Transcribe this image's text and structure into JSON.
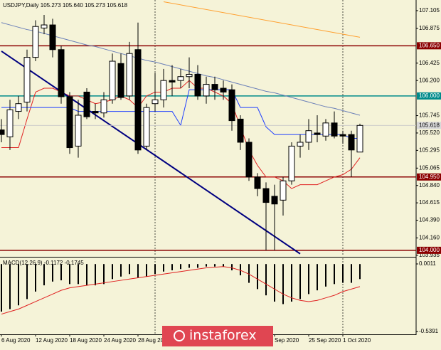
{
  "header": "USDJPY,Daily  105.273 105.640 105.273 105.618",
  "watermark": "instaforex",
  "chart_data": [
    {
      "type": "candlestick",
      "categories": [
        "6 Aug 2020",
        null,
        null,
        null,
        "12 Aug 2020",
        null,
        null,
        null,
        "18 Aug 2020",
        null,
        null,
        null,
        "24 Aug 2020",
        null,
        null,
        null,
        "28 Aug 2020",
        null,
        null,
        null,
        null,
        null,
        null,
        null,
        null,
        null,
        null,
        null,
        null,
        null,
        null,
        null,
        "Sep 2020",
        null,
        null,
        null,
        "25 Sep 2020",
        null,
        null,
        null,
        "1 Oct 2020",
        null,
        null
      ],
      "open": [
        105.56,
        105.47,
        105.8,
        105.92,
        106.5,
        106.88,
        106.92,
        106.6,
        105.99,
        105.35,
        106.05,
        105.8,
        105.78,
        105.95,
        106.42,
        106.0,
        106.6,
        105.35,
        105.9,
        105.95,
        106.2,
        106.2,
        106.25,
        106.28,
        106.0,
        106.15,
        106.1,
        106.08,
        105.7,
        105.4,
        104.95,
        104.8,
        104.7,
        104.65,
        104.9,
        105.35,
        105.4,
        105.52,
        105.48,
        105.65,
        105.5,
        105.5,
        105.273
      ],
      "high": [
        105.7,
        105.95,
        106.0,
        106.6,
        106.98,
        107.05,
        107.0,
        106.65,
        106.05,
        105.95,
        106.1,
        105.9,
        106.05,
        106.55,
        106.55,
        106.7,
        106.95,
        105.9,
        106.3,
        106.35,
        106.4,
        106.35,
        106.5,
        106.4,
        106.25,
        106.25,
        106.2,
        106.15,
        105.75,
        105.45,
        105.0,
        104.88,
        104.85,
        104.95,
        105.4,
        105.5,
        105.7,
        105.75,
        105.7,
        105.8,
        105.55,
        105.55,
        105.64
      ],
      "low": [
        105.4,
        105.3,
        105.7,
        105.8,
        106.45,
        106.8,
        106.5,
        105.9,
        105.25,
        105.2,
        105.7,
        105.7,
        105.72,
        105.9,
        105.95,
        105.95,
        105.25,
        105.3,
        105.8,
        105.85,
        106.0,
        106.1,
        106.1,
        105.95,
        105.9,
        105.95,
        105.95,
        105.55,
        105.3,
        104.9,
        104.7,
        104.0,
        104.0,
        104.45,
        104.85,
        105.2,
        105.3,
        105.4,
        105.42,
        105.45,
        105.38,
        104.95,
        105.273
      ],
      "close": [
        105.5,
        105.82,
        105.9,
        106.5,
        106.9,
        106.92,
        106.6,
        105.99,
        105.33,
        105.75,
        105.73,
        105.78,
        105.95,
        106.45,
        105.98,
        106.55,
        105.3,
        105.85,
        105.95,
        106.2,
        106.18,
        106.25,
        106.28,
        106.0,
        106.15,
        106.08,
        106.05,
        105.68,
        105.4,
        104.95,
        104.8,
        104.62,
        104.6,
        104.9,
        105.35,
        105.4,
        105.55,
        105.5,
        105.65,
        105.48,
        105.48,
        105.3,
        105.618
      ],
      "up_color": "#ffffff",
      "down_color": "#000000",
      "ylim": [
        103.925,
        107.243
      ],
      "yticks": [
        107.105,
        106.875,
        106.425,
        {
          "value": 106.2,
          "label": "106.200"
        },
        105.745,
        {
          "value": 105.52,
          "label": "105.520"
        },
        105.295,
        105.065,
        {
          "value": 104.84,
          "label": "104.840"
        },
        104.615,
        {
          "value": 104.39,
          "label": "104.390"
        },
        {
          "value": 104.16,
          "label": "104.160"
        },
        103.935
      ],
      "levels": [
        {
          "value": 106.65,
          "label": "106.650",
          "color": "#8b0000"
        },
        {
          "value": 106,
          "label": "106.000",
          "color": "#008b8b"
        },
        {
          "value": 104.95,
          "label": "104.950",
          "color": "#8b0000"
        },
        {
          "value": 104,
          "label": "104.000",
          "color": "#8b0000"
        }
      ],
      "current_price": 105.618,
      "lines": [
        {
          "color": "#e02020",
          "values": [
            105.33,
            105.33,
            105.33,
            105.7,
            106.05,
            106.1,
            106.1,
            106.05,
            106.0,
            106.0,
            105.95,
            105.9,
            105.92,
            105.95,
            106.0,
            105.95,
            105.85,
            106.0,
            106.05,
            106.05,
            106.1,
            106.1,
            106.2,
            106.1,
            106.1,
            106.05,
            106.0,
            105.9,
            105.6,
            105.3,
            105.1,
            104.95,
            104.95,
            104.9,
            104.8,
            104.85,
            104.85,
            104.85,
            104.9,
            104.95,
            104.98,
            105.05,
            105.2
          ]
        },
        {
          "color": "#1f3fff",
          "values": [
            105.85,
            105.85,
            105.85,
            105.85,
            105.85,
            105.85,
            105.85,
            105.85,
            105.85,
            105.8,
            105.8,
            105.8,
            105.8,
            105.8,
            105.8,
            105.8,
            105.8,
            105.8,
            105.8,
            105.8,
            105.8,
            105.62,
            106.08,
            106.08,
            106.08,
            106.08,
            106.08,
            106.08,
            105.85,
            105.85,
            105.85,
            105.6,
            105.5,
            105.5,
            105.5,
            105.5,
            105.5,
            105.5,
            105.5,
            105.5,
            105.5,
            105.45,
            105.45
          ]
        },
        {
          "color": "#6a7fb8",
          "values": [
            106.95,
            106.92,
            106.89,
            106.86,
            106.84,
            106.81,
            106.78,
            106.75,
            106.72,
            106.69,
            106.66,
            106.64,
            106.61,
            106.58,
            106.55,
            106.52,
            106.49,
            106.46,
            106.44,
            106.41,
            106.38,
            106.35,
            106.32,
            106.29,
            106.26,
            106.24,
            106.21,
            106.18,
            106.15,
            106.12,
            106.09,
            106.06,
            106.04,
            106.01,
            105.98,
            105.95,
            105.92,
            105.89,
            105.86,
            105.84,
            105.81,
            105.78,
            105.75
          ]
        },
        {
          "color": "#ffa030",
          "x": [
            19,
            42
          ],
          "values": [
            107.22,
            106.76
          ]
        },
        {
          "color": "#000080",
          "x": [
            0,
            35
          ],
          "values": [
            106.58,
            103.955
          ]
        }
      ]
    },
    {
      "type": "macd",
      "label": "MACD(12,26,9) -0.1172 -0.1745",
      "histogram": [
        -0.38,
        -0.36,
        -0.33,
        -0.28,
        -0.22,
        -0.17,
        -0.14,
        -0.13,
        -0.16,
        -0.16,
        -0.17,
        -0.17,
        -0.16,
        -0.12,
        -0.1,
        -0.08,
        -0.11,
        -0.1,
        -0.08,
        -0.06,
        -0.05,
        -0.04,
        -0.03,
        -0.03,
        -0.02,
        -0.02,
        -0.02,
        -0.05,
        -0.09,
        -0.15,
        -0.2,
        -0.25,
        -0.3,
        -0.32,
        -0.3,
        -0.28,
        -0.24,
        -0.21,
        -0.18,
        -0.16,
        -0.15,
        -0.15,
        -0.12
      ],
      "histogram_color": "#000000",
      "signal": {
        "color": "#e02020",
        "values": [
          -0.4,
          -0.38,
          -0.36,
          -0.33,
          -0.3,
          -0.27,
          -0.24,
          -0.21,
          -0.19,
          -0.18,
          -0.17,
          -0.16,
          -0.15,
          -0.14,
          -0.13,
          -0.12,
          -0.11,
          -0.1,
          -0.09,
          -0.08,
          -0.07,
          -0.06,
          -0.05,
          -0.04,
          -0.03,
          -0.025,
          -0.02,
          -0.03,
          -0.05,
          -0.08,
          -0.12,
          -0.16,
          -0.2,
          -0.24,
          -0.27,
          -0.29,
          -0.3,
          -0.29,
          -0.27,
          -0.25,
          -0.22,
          -0.2,
          -0.18
        ]
      },
      "ylim": [
        -0.5618,
        0.0466
      ],
      "yticks": [
        0.0011,
        -0.5391
      ]
    }
  ]
}
